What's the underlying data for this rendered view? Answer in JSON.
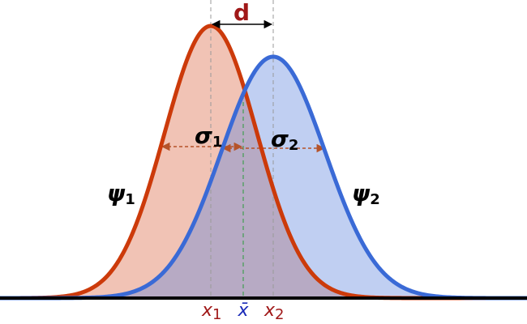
{
  "distance_label": "d",
  "widths": [
    {
      "symbol": "σ",
      "subscript": "1"
    },
    {
      "symbol": "σ",
      "subscript": "2"
    }
  ],
  "curves": [
    {
      "symbol": "ψ",
      "subscript": "1"
    },
    {
      "symbol": "ψ",
      "subscript": "2"
    }
  ],
  "positions": [
    {
      "symbol": "x",
      "subscript": "1"
    },
    {
      "symbol": "x̄"
    },
    {
      "symbol": "x",
      "subscript": "2"
    }
  ]
}
